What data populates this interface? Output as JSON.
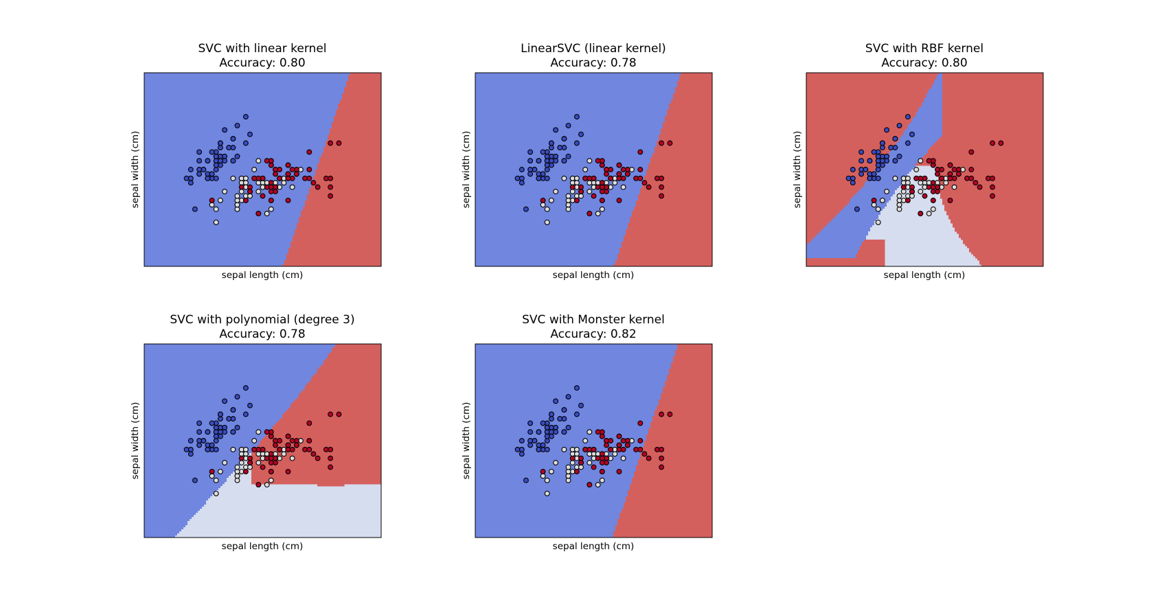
{
  "figure": {
    "colors": {
      "class_0_region": "#7086df",
      "class_1_region": "#d6ddef",
      "class_2_region": "#d4605e",
      "class_0_point": "#3b4cc0",
      "class_1_point": "#dddddd",
      "class_2_point": "#b40426",
      "point_edge": "#000000"
    }
  },
  "chart_data": [
    {
      "type": "scatter",
      "title": "SVC with linear kernel",
      "subtitle": "Accuracy: 0.80",
      "xlabel": "sepal length (cm)",
      "ylabel": "sepal width (cm)",
      "xticks": [],
      "yticks": [],
      "legend": "none",
      "decision_regions": "linear"
    },
    {
      "type": "scatter",
      "title": "LinearSVC (linear kernel)",
      "subtitle": "Accuracy: 0.78",
      "xlabel": "sepal length (cm)",
      "ylabel": "sepal width (cm)",
      "xticks": [],
      "yticks": [],
      "legend": "none",
      "decision_regions": "linear"
    },
    {
      "type": "scatter",
      "title": "SVC with RBF kernel",
      "subtitle": "Accuracy: 0.80",
      "xlabel": "sepal length (cm)",
      "ylabel": "sepal width (cm)",
      "xticks": [],
      "yticks": [],
      "legend": "none",
      "decision_regions": "rbf"
    },
    {
      "type": "scatter",
      "title": "SVC with polynomial (degree 3)",
      "subtitle": "Accuracy: 0.78",
      "xlabel": "sepal length (cm)",
      "ylabel": "sepal width (cm)",
      "xticks": [],
      "yticks": [],
      "legend": "none",
      "decision_regions": "polynomial"
    },
    {
      "type": "scatter",
      "title": "SVC with Monster kernel",
      "subtitle": "Accuracy: 0.82",
      "xlabel": "sepal length (cm)",
      "ylabel": "sepal width (cm)",
      "xticks": [],
      "yticks": [],
      "legend": "none",
      "decision_regions": "custom"
    }
  ],
  "points": [
    {
      "x": 5.1,
      "y": 3.5,
      "c": 0
    },
    {
      "x": 4.9,
      "y": 3.0,
      "c": 0
    },
    {
      "x": 4.7,
      "y": 3.2,
      "c": 0
    },
    {
      "x": 4.6,
      "y": 3.1,
      "c": 0
    },
    {
      "x": 5.0,
      "y": 3.6,
      "c": 0
    },
    {
      "x": 5.4,
      "y": 3.9,
      "c": 0
    },
    {
      "x": 4.6,
      "y": 3.4,
      "c": 0
    },
    {
      "x": 5.0,
      "y": 3.4,
      "c": 0
    },
    {
      "x": 4.4,
      "y": 2.9,
      "c": 0
    },
    {
      "x": 4.9,
      "y": 3.1,
      "c": 0
    },
    {
      "x": 5.4,
      "y": 3.7,
      "c": 0
    },
    {
      "x": 4.8,
      "y": 3.4,
      "c": 0
    },
    {
      "x": 4.8,
      "y": 3.0,
      "c": 0
    },
    {
      "x": 4.3,
      "y": 3.0,
      "c": 0
    },
    {
      "x": 5.8,
      "y": 4.0,
      "c": 0
    },
    {
      "x": 5.7,
      "y": 4.4,
      "c": 0
    },
    {
      "x": 5.4,
      "y": 3.9,
      "c": 0
    },
    {
      "x": 5.1,
      "y": 3.5,
      "c": 0
    },
    {
      "x": 5.7,
      "y": 3.8,
      "c": 0
    },
    {
      "x": 5.1,
      "y": 3.8,
      "c": 0
    },
    {
      "x": 5.4,
      "y": 3.4,
      "c": 0
    },
    {
      "x": 5.1,
      "y": 3.7,
      "c": 0
    },
    {
      "x": 4.6,
      "y": 3.6,
      "c": 0
    },
    {
      "x": 5.1,
      "y": 3.3,
      "c": 0
    },
    {
      "x": 4.8,
      "y": 3.4,
      "c": 0
    },
    {
      "x": 5.0,
      "y": 3.0,
      "c": 0
    },
    {
      "x": 5.0,
      "y": 3.4,
      "c": 0
    },
    {
      "x": 5.2,
      "y": 3.5,
      "c": 0
    },
    {
      "x": 5.2,
      "y": 3.4,
      "c": 0
    },
    {
      "x": 4.7,
      "y": 3.2,
      "c": 0
    },
    {
      "x": 4.8,
      "y": 3.1,
      "c": 0
    },
    {
      "x": 5.4,
      "y": 3.4,
      "c": 0
    },
    {
      "x": 5.2,
      "y": 4.1,
      "c": 0
    },
    {
      "x": 5.5,
      "y": 4.2,
      "c": 0
    },
    {
      "x": 4.9,
      "y": 3.1,
      "c": 0
    },
    {
      "x": 5.0,
      "y": 3.2,
      "c": 0
    },
    {
      "x": 5.5,
      "y": 3.5,
      "c": 0
    },
    {
      "x": 4.9,
      "y": 3.6,
      "c": 0
    },
    {
      "x": 4.4,
      "y": 3.0,
      "c": 0
    },
    {
      "x": 5.1,
      "y": 3.4,
      "c": 0
    },
    {
      "x": 5.0,
      "y": 3.5,
      "c": 0
    },
    {
      "x": 4.5,
      "y": 2.3,
      "c": 0
    },
    {
      "x": 4.4,
      "y": 3.2,
      "c": 0
    },
    {
      "x": 5.0,
      "y": 3.5,
      "c": 0
    },
    {
      "x": 5.1,
      "y": 3.8,
      "c": 0
    },
    {
      "x": 4.8,
      "y": 3.0,
      "c": 0
    },
    {
      "x": 5.1,
      "y": 3.8,
      "c": 0
    },
    {
      "x": 4.6,
      "y": 3.2,
      "c": 0
    },
    {
      "x": 5.3,
      "y": 3.7,
      "c": 0
    },
    {
      "x": 5.0,
      "y": 3.3,
      "c": 0
    },
    {
      "x": 7.0,
      "y": 3.2,
      "c": 1
    },
    {
      "x": 6.4,
      "y": 3.2,
      "c": 1
    },
    {
      "x": 6.9,
      "y": 3.1,
      "c": 1
    },
    {
      "x": 5.5,
      "y": 2.3,
      "c": 1
    },
    {
      "x": 6.5,
      "y": 2.8,
      "c": 1
    },
    {
      "x": 5.7,
      "y": 2.8,
      "c": 1
    },
    {
      "x": 6.3,
      "y": 3.3,
      "c": 1
    },
    {
      "x": 4.9,
      "y": 2.4,
      "c": 1
    },
    {
      "x": 6.6,
      "y": 2.9,
      "c": 1
    },
    {
      "x": 5.2,
      "y": 2.7,
      "c": 1
    },
    {
      "x": 5.0,
      "y": 2.0,
      "c": 1
    },
    {
      "x": 5.9,
      "y": 3.0,
      "c": 1
    },
    {
      "x": 6.0,
      "y": 2.2,
      "c": 1
    },
    {
      "x": 6.1,
      "y": 2.9,
      "c": 1
    },
    {
      "x": 5.6,
      "y": 2.9,
      "c": 1
    },
    {
      "x": 6.7,
      "y": 3.1,
      "c": 1
    },
    {
      "x": 5.6,
      "y": 3.0,
      "c": 1
    },
    {
      "x": 5.8,
      "y": 2.7,
      "c": 1
    },
    {
      "x": 6.2,
      "y": 2.2,
      "c": 1
    },
    {
      "x": 5.6,
      "y": 2.5,
      "c": 1
    },
    {
      "x": 5.9,
      "y": 3.2,
      "c": 1
    },
    {
      "x": 6.1,
      "y": 2.8,
      "c": 1
    },
    {
      "x": 6.3,
      "y": 2.5,
      "c": 1
    },
    {
      "x": 6.1,
      "y": 2.8,
      "c": 1
    },
    {
      "x": 6.4,
      "y": 2.9,
      "c": 1
    },
    {
      "x": 6.6,
      "y": 3.0,
      "c": 1
    },
    {
      "x": 6.8,
      "y": 2.8,
      "c": 1
    },
    {
      "x": 6.7,
      "y": 3.0,
      "c": 1
    },
    {
      "x": 6.0,
      "y": 2.9,
      "c": 1
    },
    {
      "x": 5.7,
      "y": 2.6,
      "c": 1
    },
    {
      "x": 5.5,
      "y": 2.4,
      "c": 1
    },
    {
      "x": 5.5,
      "y": 2.4,
      "c": 1
    },
    {
      "x": 5.8,
      "y": 2.7,
      "c": 1
    },
    {
      "x": 6.0,
      "y": 2.7,
      "c": 1
    },
    {
      "x": 5.4,
      "y": 3.0,
      "c": 1
    },
    {
      "x": 6.0,
      "y": 3.4,
      "c": 1
    },
    {
      "x": 6.7,
      "y": 3.1,
      "c": 1
    },
    {
      "x": 6.3,
      "y": 2.3,
      "c": 1
    },
    {
      "x": 5.6,
      "y": 3.0,
      "c": 1
    },
    {
      "x": 5.5,
      "y": 2.5,
      "c": 1
    },
    {
      "x": 5.5,
      "y": 2.6,
      "c": 1
    },
    {
      "x": 6.1,
      "y": 3.0,
      "c": 1
    },
    {
      "x": 5.8,
      "y": 2.6,
      "c": 1
    },
    {
      "x": 5.0,
      "y": 2.3,
      "c": 1
    },
    {
      "x": 5.6,
      "y": 2.7,
      "c": 1
    },
    {
      "x": 5.7,
      "y": 3.0,
      "c": 1
    },
    {
      "x": 5.7,
      "y": 2.9,
      "c": 1
    },
    {
      "x": 6.2,
      "y": 2.9,
      "c": 1
    },
    {
      "x": 5.1,
      "y": 2.5,
      "c": 1
    },
    {
      "x": 5.7,
      "y": 2.8,
      "c": 1
    },
    {
      "x": 6.3,
      "y": 3.3,
      "c": 2
    },
    {
      "x": 5.8,
      "y": 2.7,
      "c": 2
    },
    {
      "x": 7.1,
      "y": 3.0,
      "c": 2
    },
    {
      "x": 6.3,
      "y": 2.9,
      "c": 2
    },
    {
      "x": 6.5,
      "y": 3.0,
      "c": 2
    },
    {
      "x": 7.6,
      "y": 3.0,
      "c": 2
    },
    {
      "x": 4.9,
      "y": 2.5,
      "c": 2
    },
    {
      "x": 7.3,
      "y": 2.9,
      "c": 2
    },
    {
      "x": 6.7,
      "y": 2.5,
      "c": 2
    },
    {
      "x": 7.2,
      "y": 3.6,
      "c": 2
    },
    {
      "x": 6.5,
      "y": 3.2,
      "c": 2
    },
    {
      "x": 6.4,
      "y": 2.7,
      "c": 2
    },
    {
      "x": 6.8,
      "y": 3.0,
      "c": 2
    },
    {
      "x": 5.7,
      "y": 2.5,
      "c": 2
    },
    {
      "x": 5.8,
      "y": 2.8,
      "c": 2
    },
    {
      "x": 6.4,
      "y": 3.2,
      "c": 2
    },
    {
      "x": 6.5,
      "y": 3.0,
      "c": 2
    },
    {
      "x": 7.7,
      "y": 3.8,
      "c": 2
    },
    {
      "x": 7.7,
      "y": 2.6,
      "c": 2
    },
    {
      "x": 6.0,
      "y": 2.2,
      "c": 2
    },
    {
      "x": 6.9,
      "y": 3.2,
      "c": 2
    },
    {
      "x": 5.6,
      "y": 2.8,
      "c": 2
    },
    {
      "x": 7.7,
      "y": 2.8,
      "c": 2
    },
    {
      "x": 6.3,
      "y": 2.7,
      "c": 2
    },
    {
      "x": 6.7,
      "y": 3.3,
      "c": 2
    },
    {
      "x": 7.2,
      "y": 3.2,
      "c": 2
    },
    {
      "x": 6.2,
      "y": 2.8,
      "c": 2
    },
    {
      "x": 6.1,
      "y": 3.0,
      "c": 2
    },
    {
      "x": 6.4,
      "y": 2.8,
      "c": 2
    },
    {
      "x": 7.2,
      "y": 3.0,
      "c": 2
    },
    {
      "x": 7.4,
      "y": 2.8,
      "c": 2
    },
    {
      "x": 7.9,
      "y": 3.8,
      "c": 2
    },
    {
      "x": 6.4,
      "y": 2.8,
      "c": 2
    },
    {
      "x": 6.3,
      "y": 2.8,
      "c": 2
    },
    {
      "x": 6.1,
      "y": 2.6,
      "c": 2
    },
    {
      "x": 7.7,
      "y": 3.0,
      "c": 2
    },
    {
      "x": 6.3,
      "y": 3.4,
      "c": 2
    },
    {
      "x": 6.4,
      "y": 3.1,
      "c": 2
    },
    {
      "x": 6.0,
      "y": 3.0,
      "c": 2
    },
    {
      "x": 6.9,
      "y": 3.1,
      "c": 2
    },
    {
      "x": 6.7,
      "y": 3.1,
      "c": 2
    },
    {
      "x": 6.9,
      "y": 3.1,
      "c": 2
    },
    {
      "x": 5.8,
      "y": 2.7,
      "c": 2
    },
    {
      "x": 6.8,
      "y": 3.2,
      "c": 2
    },
    {
      "x": 6.7,
      "y": 3.3,
      "c": 2
    },
    {
      "x": 6.7,
      "y": 3.0,
      "c": 2
    },
    {
      "x": 6.3,
      "y": 2.5,
      "c": 2
    },
    {
      "x": 6.5,
      "y": 3.0,
      "c": 2
    },
    {
      "x": 6.2,
      "y": 3.4,
      "c": 2
    },
    {
      "x": 5.9,
      "y": 3.0,
      "c": 2
    }
  ]
}
